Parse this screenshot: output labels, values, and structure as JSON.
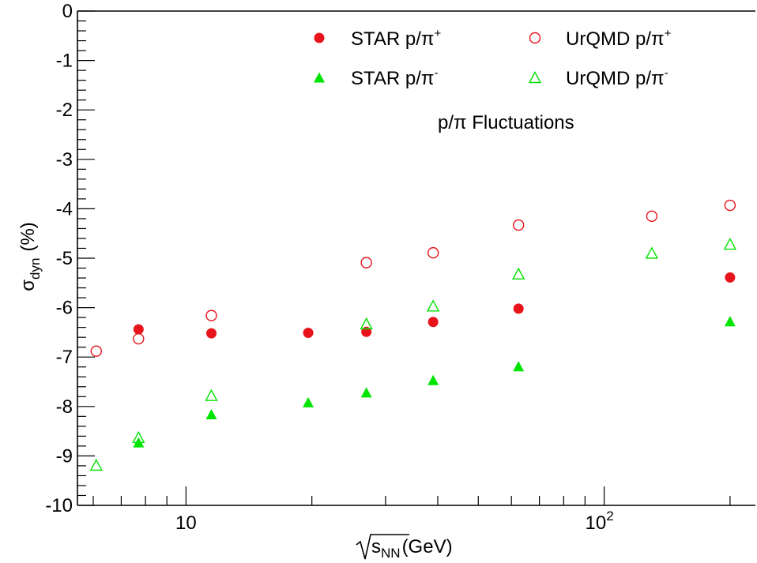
{
  "chart_data": {
    "type": "scatter",
    "title": "",
    "annotation": {
      "text": "p/π Fluctuations"
    },
    "xlabel": {
      "radical": "√",
      "main": "s",
      "sub": "NN",
      "unit": "(GeV)"
    },
    "ylabel": {
      "main": "σ",
      "sub": "dyn",
      "unit": "(%)"
    },
    "xscale": "log",
    "xlim": [
      5.5,
      230
    ],
    "ylim": [
      -10,
      0
    ],
    "x_tick_labels": [
      {
        "value": 10,
        "base": "10",
        "exp": ""
      },
      {
        "value": 100,
        "base": "10",
        "exp": "2"
      }
    ],
    "y_ticks": [
      0,
      -1,
      -2,
      -3,
      -4,
      -5,
      -6,
      -7,
      -8,
      -9,
      -10
    ],
    "grid": false,
    "legend_position": "top-right",
    "legend": [
      {
        "series": 0,
        "label_main": "STAR p/π",
        "label_sup": "+"
      },
      {
        "series": 2,
        "label_main": "UrQMD p/π",
        "label_sup": "+"
      },
      {
        "series": 1,
        "label_main": "STAR p/π",
        "label_sup": "-"
      },
      {
        "series": 3,
        "label_main": "UrQMD p/π",
        "label_sup": "-"
      }
    ],
    "series": [
      {
        "name": "STAR p/π+",
        "marker": "filled-circle",
        "color": "#e8141b",
        "points": [
          [
            7.7,
            -6.44
          ],
          [
            11.5,
            -6.52
          ],
          [
            19.6,
            -6.51
          ],
          [
            27,
            -6.49
          ],
          [
            39,
            -6.29
          ],
          [
            62.4,
            -6.02
          ],
          [
            200,
            -5.39
          ]
        ]
      },
      {
        "name": "STAR p/π-",
        "marker": "filled-triangle",
        "color": "#00e400",
        "points": [
          [
            7.7,
            -8.74
          ],
          [
            11.5,
            -8.17
          ],
          [
            19.6,
            -7.93
          ],
          [
            27,
            -7.73
          ],
          [
            39,
            -7.48
          ],
          [
            62.4,
            -7.2
          ],
          [
            200,
            -6.29
          ]
        ]
      },
      {
        "name": "UrQMD p/π+",
        "marker": "open-circle",
        "color": "#e8141b",
        "points": [
          [
            6.1,
            -6.88
          ],
          [
            7.7,
            -6.63
          ],
          [
            11.5,
            -6.16
          ],
          [
            27,
            -5.09
          ],
          [
            39,
            -4.89
          ],
          [
            62.4,
            -4.33
          ],
          [
            130,
            -4.15
          ],
          [
            200,
            -3.93
          ]
        ]
      },
      {
        "name": "UrQMD p/π-",
        "marker": "open-triangle",
        "color": "#00e400",
        "points": [
          [
            6.1,
            -9.2
          ],
          [
            7.7,
            -8.64
          ],
          [
            11.5,
            -7.79
          ],
          [
            27,
            -6.34
          ],
          [
            39,
            -5.98
          ],
          [
            62.4,
            -5.33
          ],
          [
            130,
            -4.91
          ],
          [
            200,
            -4.73
          ]
        ]
      }
    ]
  }
}
